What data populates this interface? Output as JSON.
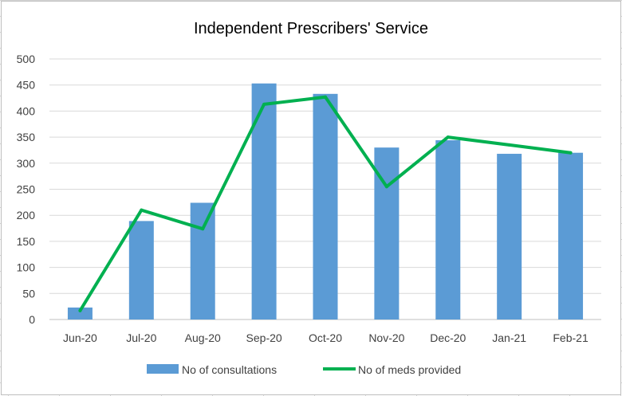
{
  "chart_data": {
    "type": "bar",
    "title": "Independent Prescribers' Service",
    "categories": [
      "Jun-20",
      "Jul-20",
      "Aug-20",
      "Sep-20",
      "Oct-20",
      "Nov-20",
      "Dec-20",
      "Jan-21",
      "Feb-21"
    ],
    "series": [
      {
        "name": "No of consultations",
        "kind": "bar",
        "color": "#5b9bd5",
        "values": [
          23,
          189,
          224,
          453,
          433,
          330,
          344,
          318,
          320
        ]
      },
      {
        "name": "No of meds provided",
        "kind": "line",
        "color": "#00b050",
        "values": [
          17,
          210,
          174,
          413,
          427,
          255,
          350,
          335,
          320
        ]
      }
    ],
    "xlabel": "",
    "ylabel": "",
    "ylim": [
      0,
      500
    ],
    "yticks": [
      "0",
      "50",
      "100",
      "150",
      "200",
      "250",
      "300",
      "350",
      "400",
      "450",
      "500"
    ],
    "grid": true,
    "legend_position": "bottom"
  }
}
